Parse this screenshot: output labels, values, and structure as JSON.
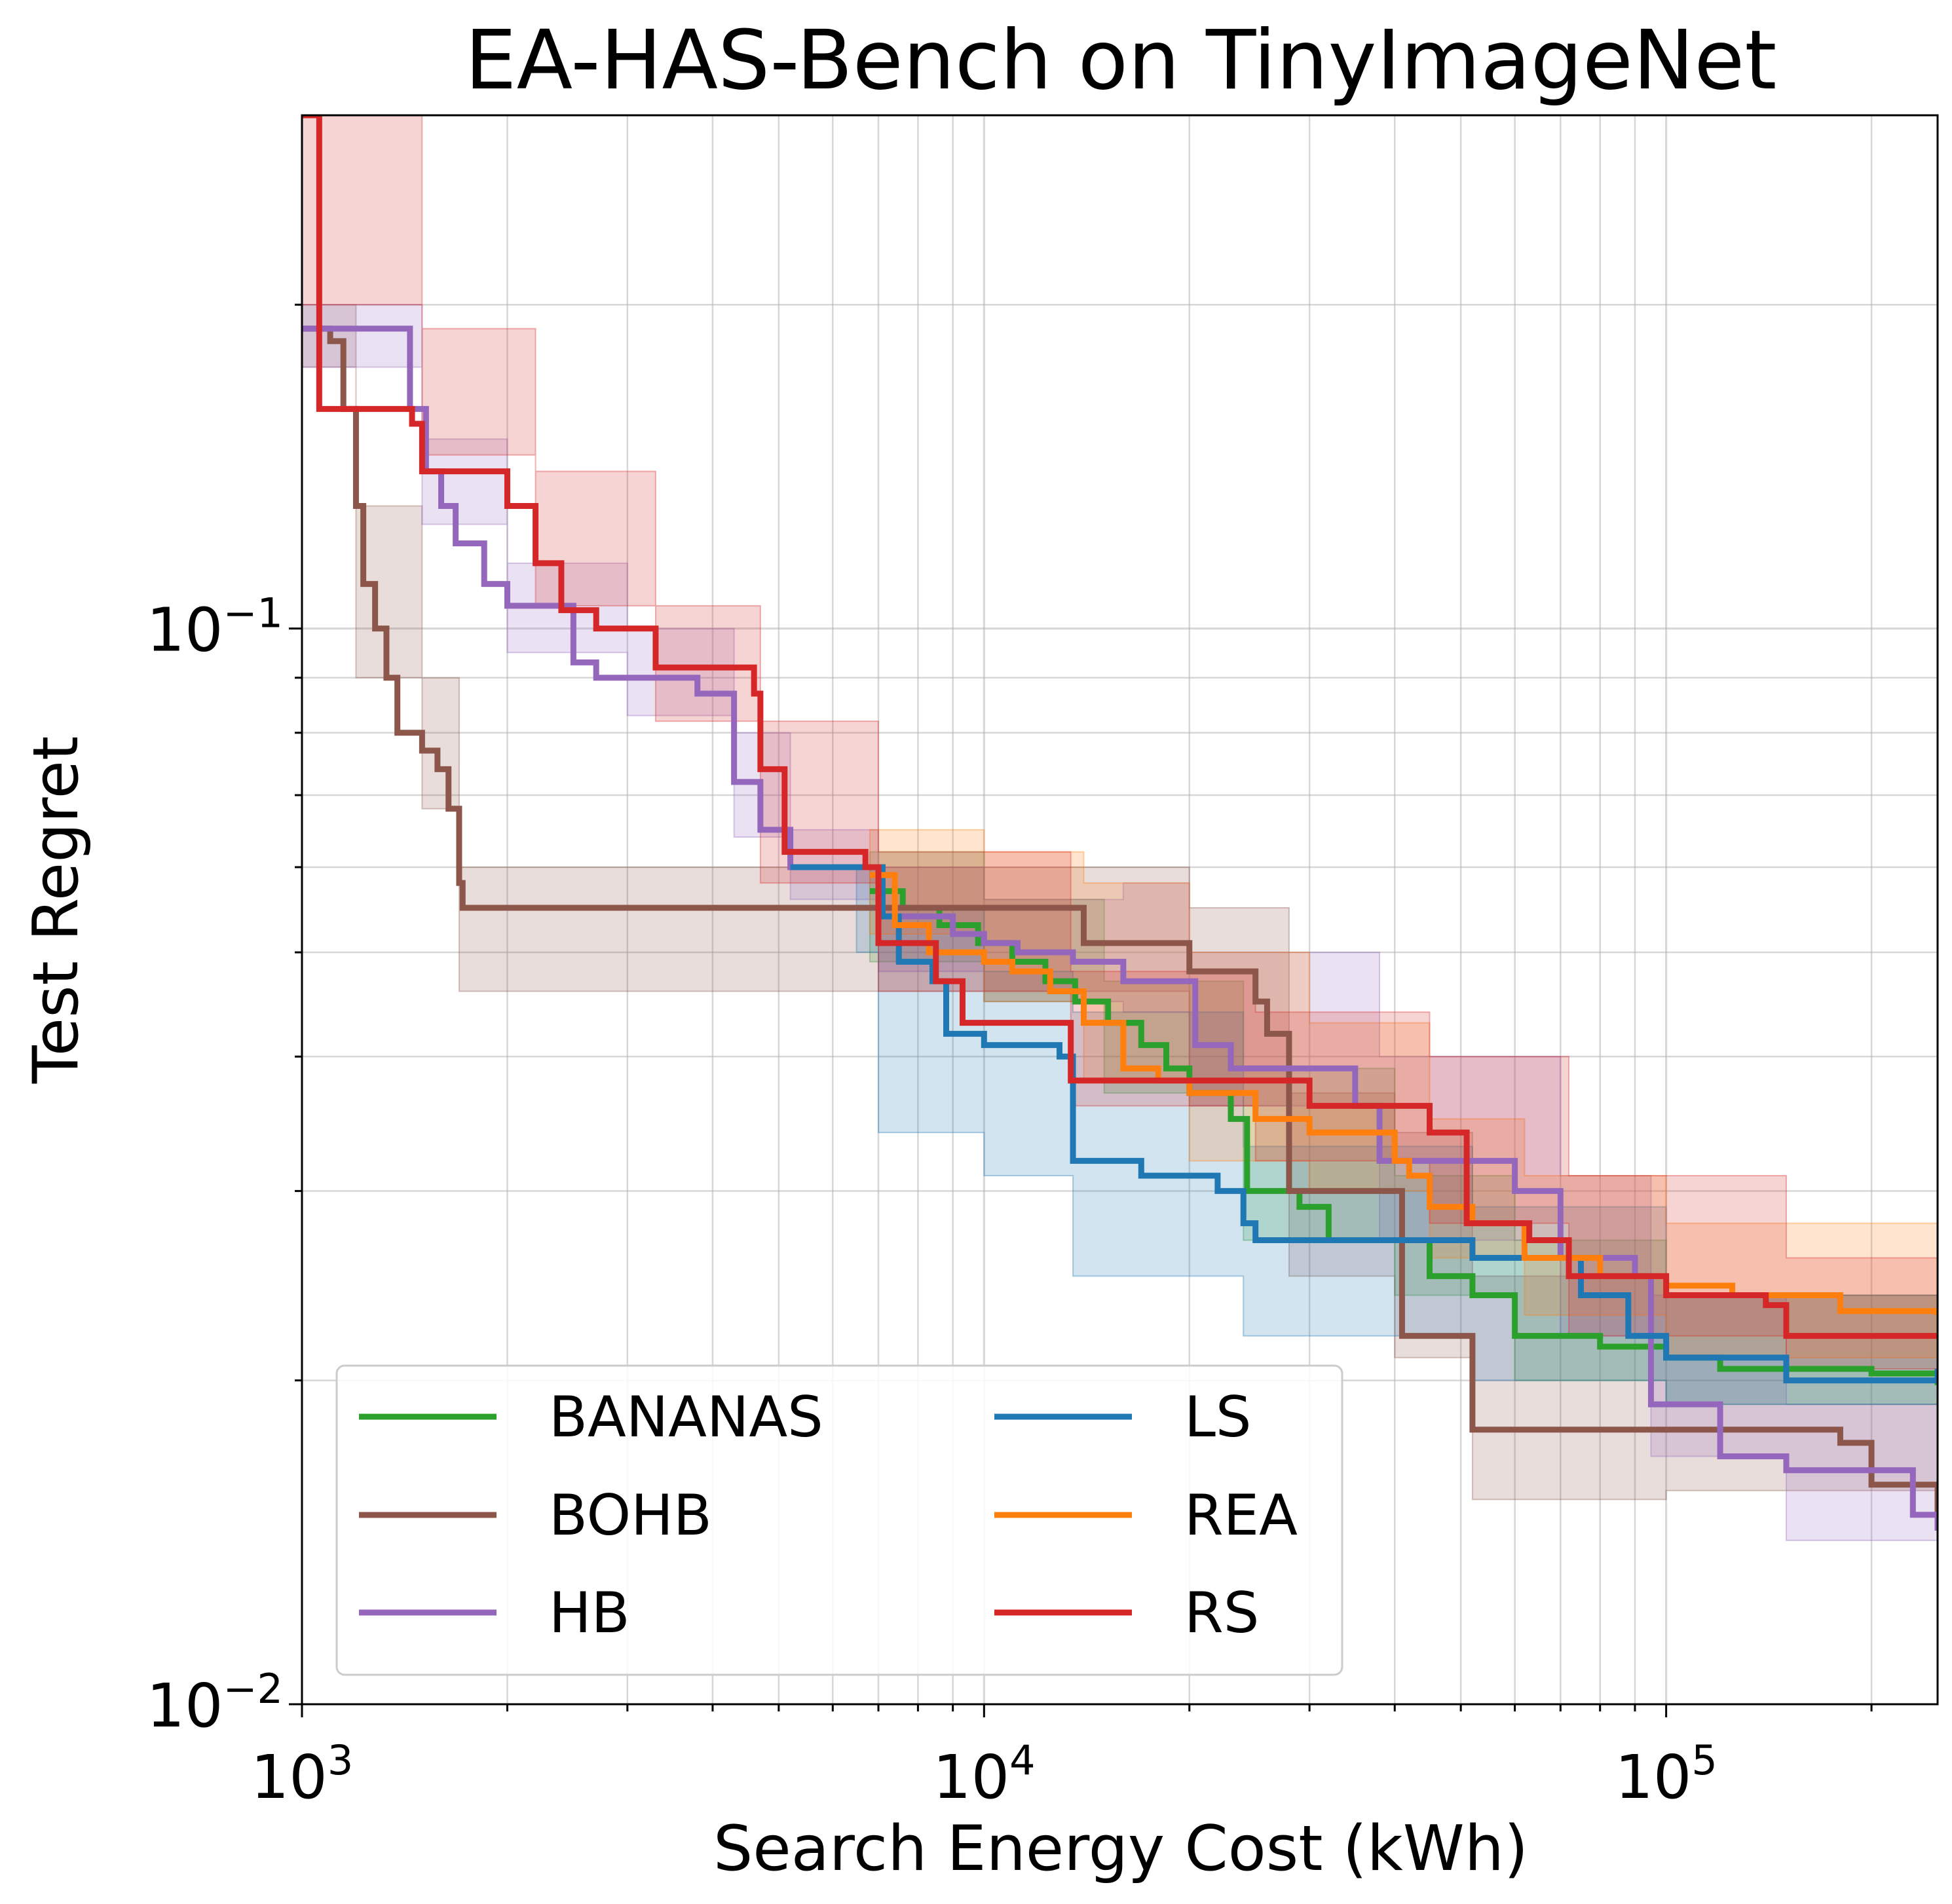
{
  "chart_data": {
    "type": "line",
    "title": "EA-HAS-Bench on TinyImageNet",
    "xlabel": "Search Energy Cost (kWh)",
    "ylabel": "Test Regret",
    "x_scale": "log",
    "y_scale": "log",
    "xlim": [
      1000,
      250000
    ],
    "ylim": [
      0.01,
      0.3
    ],
    "grid": true,
    "grid_minor": true,
    "legend": {
      "placement": "lower-left",
      "columns": 2
    },
    "x_ticks": [
      {
        "value": 1000,
        "base": "10",
        "exp": "3"
      },
      {
        "value": 10000,
        "base": "10",
        "exp": "4"
      },
      {
        "value": 100000,
        "base": "10",
        "exp": "5"
      }
    ],
    "y_ticks": [
      {
        "value": 0.01,
        "base": "10",
        "exp": "−2"
      },
      {
        "value": 0.1,
        "base": "10",
        "exp": "−1"
      }
    ],
    "series": [
      {
        "name": "BANANAS",
        "color": "#2ca02c",
        "points": [
          [
            6800,
            0.057
          ],
          [
            7600,
            0.055
          ],
          [
            8600,
            0.053
          ],
          [
            9800,
            0.051
          ],
          [
            11000,
            0.049
          ],
          [
            12300,
            0.047
          ],
          [
            13600,
            0.045
          ],
          [
            15200,
            0.043
          ],
          [
            17000,
            0.041
          ],
          [
            18500,
            0.039
          ],
          [
            20000,
            0.037
          ],
          [
            23000,
            0.035
          ],
          [
            24300,
            0.03
          ],
          [
            29000,
            0.029
          ],
          [
            32000,
            0.027
          ],
          [
            40000,
            0.027
          ],
          [
            45000,
            0.025
          ],
          [
            52000,
            0.024
          ],
          [
            60000,
            0.022
          ],
          [
            80000,
            0.0215
          ],
          [
            100000,
            0.021
          ],
          [
            120000,
            0.0205
          ],
          [
            200000,
            0.0203
          ],
          [
            250000,
            0.0198
          ]
        ],
        "band": [
          [
            6800,
            0.062,
            0.049
          ],
          [
            10000,
            0.056,
            0.045
          ],
          [
            15000,
            0.047,
            0.037
          ],
          [
            24000,
            0.039,
            0.027
          ],
          [
            40000,
            0.031,
            0.024
          ],
          [
            60000,
            0.027,
            0.02
          ],
          [
            100000,
            0.024,
            0.019
          ],
          [
            250000,
            0.023,
            0.0175
          ]
        ]
      },
      {
        "name": "BOHB",
        "color": "#8c564b",
        "points": [
          [
            1000,
            0.19
          ],
          [
            1100,
            0.185
          ],
          [
            1150,
            0.16
          ],
          [
            1200,
            0.13
          ],
          [
            1230,
            0.11
          ],
          [
            1280,
            0.1
          ],
          [
            1330,
            0.09
          ],
          [
            1380,
            0.08
          ],
          [
            1500,
            0.077
          ],
          [
            1580,
            0.074
          ],
          [
            1640,
            0.068
          ],
          [
            1700,
            0.058
          ],
          [
            1720,
            0.055
          ],
          [
            13000,
            0.055
          ],
          [
            14000,
            0.051
          ],
          [
            20000,
            0.048
          ],
          [
            25000,
            0.045
          ],
          [
            26000,
            0.042
          ],
          [
            28000,
            0.03
          ],
          [
            40000,
            0.03
          ],
          [
            41000,
            0.022
          ],
          [
            52000,
            0.018
          ],
          [
            100000,
            0.018
          ],
          [
            180000,
            0.0175
          ],
          [
            200000,
            0.016
          ],
          [
            250000,
            0.015
          ]
        ],
        "band": [
          [
            1000,
            0.2,
            0.175
          ],
          [
            1200,
            0.13,
            0.09
          ],
          [
            1500,
            0.09,
            0.068
          ],
          [
            1700,
            0.06,
            0.046
          ],
          [
            13000,
            0.06,
            0.046
          ],
          [
            20000,
            0.055,
            0.036
          ],
          [
            28000,
            0.037,
            0.025
          ],
          [
            40000,
            0.034,
            0.021
          ],
          [
            52000,
            0.025,
            0.0155
          ],
          [
            100000,
            0.024,
            0.0158
          ],
          [
            250000,
            0.022,
            0.0128
          ]
        ]
      },
      {
        "name": "HB",
        "color": "#9467bd",
        "points": [
          [
            1000,
            0.19
          ],
          [
            1380,
            0.19
          ],
          [
            1440,
            0.16
          ],
          [
            1520,
            0.14
          ],
          [
            1600,
            0.13
          ],
          [
            1680,
            0.12
          ],
          [
            1850,
            0.11
          ],
          [
            2000,
            0.105
          ],
          [
            2350,
            0.105
          ],
          [
            2500,
            0.093
          ],
          [
            2700,
            0.09
          ],
          [
            3500,
            0.09
          ],
          [
            3800,
            0.087
          ],
          [
            4300,
            0.072
          ],
          [
            4700,
            0.065
          ],
          [
            5200,
            0.06
          ],
          [
            6800,
            0.06
          ],
          [
            7100,
            0.054
          ],
          [
            9000,
            0.052
          ],
          [
            10000,
            0.051
          ],
          [
            11200,
            0.05
          ],
          [
            13500,
            0.049
          ],
          [
            16000,
            0.047
          ],
          [
            20000,
            0.047
          ],
          [
            20400,
            0.041
          ],
          [
            23000,
            0.039
          ],
          [
            35000,
            0.036
          ],
          [
            38000,
            0.032
          ],
          [
            60000,
            0.03
          ],
          [
            70000,
            0.026
          ],
          [
            90000,
            0.025
          ],
          [
            95000,
            0.019
          ],
          [
            120000,
            0.017
          ],
          [
            150000,
            0.0165
          ],
          [
            200000,
            0.0165
          ],
          [
            230000,
            0.015
          ],
          [
            250000,
            0.0145
          ]
        ],
        "band": [
          [
            1000,
            0.2,
            0.175
          ],
          [
            1500,
            0.15,
            0.125
          ],
          [
            2000,
            0.115,
            0.095
          ],
          [
            3000,
            0.1,
            0.083
          ],
          [
            4300,
            0.08,
            0.064
          ],
          [
            5200,
            0.065,
            0.056
          ],
          [
            7000,
            0.06,
            0.048
          ],
          [
            10000,
            0.056,
            0.045
          ],
          [
            16000,
            0.058,
            0.044
          ],
          [
            20000,
            0.05,
            0.036
          ],
          [
            38000,
            0.04,
            0.027
          ],
          [
            70000,
            0.031,
            0.022
          ],
          [
            95000,
            0.024,
            0.017
          ],
          [
            150000,
            0.019,
            0.0142
          ],
          [
            250000,
            0.0175,
            0.0125
          ]
        ]
      },
      {
        "name": "LS",
        "color": "#1f77b4",
        "points": [
          [
            5200,
            0.06
          ],
          [
            6800,
            0.06
          ],
          [
            7100,
            0.054
          ],
          [
            7500,
            0.049
          ],
          [
            8400,
            0.047
          ],
          [
            8800,
            0.042
          ],
          [
            10000,
            0.041
          ],
          [
            12900,
            0.04
          ],
          [
            13500,
            0.032
          ],
          [
            17000,
            0.031
          ],
          [
            22000,
            0.03
          ],
          [
            24000,
            0.028
          ],
          [
            25000,
            0.027
          ],
          [
            40000,
            0.027
          ],
          [
            52000,
            0.026
          ],
          [
            63000,
            0.026
          ],
          [
            75000,
            0.024
          ],
          [
            88000,
            0.022
          ],
          [
            100000,
            0.021
          ],
          [
            150000,
            0.02
          ],
          [
            250000,
            0.0205
          ]
        ],
        "band": [
          [
            6500,
            0.06,
            0.05
          ],
          [
            7000,
            0.055,
            0.034
          ],
          [
            10000,
            0.048,
            0.031
          ],
          [
            13500,
            0.044,
            0.025
          ],
          [
            24000,
            0.033,
            0.022
          ],
          [
            52000,
            0.029,
            0.02
          ],
          [
            100000,
            0.024,
            0.019
          ],
          [
            250000,
            0.023,
            0.019
          ]
        ]
      },
      {
        "name": "REA",
        "color": "#ff7f0e",
        "points": [
          [
            6800,
            0.059
          ],
          [
            7400,
            0.053
          ],
          [
            8300,
            0.05
          ],
          [
            10000,
            0.049
          ],
          [
            11000,
            0.048
          ],
          [
            12500,
            0.046
          ],
          [
            14000,
            0.043
          ],
          [
            16000,
            0.039
          ],
          [
            18000,
            0.038
          ],
          [
            20000,
            0.037
          ],
          [
            25000,
            0.035
          ],
          [
            30000,
            0.034
          ],
          [
            40000,
            0.032
          ],
          [
            42000,
            0.031
          ],
          [
            45000,
            0.029
          ],
          [
            52000,
            0.028
          ],
          [
            62000,
            0.026
          ],
          [
            80000,
            0.025
          ],
          [
            100000,
            0.0245
          ],
          [
            125000,
            0.024
          ],
          [
            180000,
            0.0232
          ],
          [
            250000,
            0.023
          ]
        ],
        "band": [
          [
            6800,
            0.065,
            0.052
          ],
          [
            10000,
            0.062,
            0.045
          ],
          [
            14000,
            0.058,
            0.038
          ],
          [
            20000,
            0.05,
            0.032
          ],
          [
            30000,
            0.043,
            0.03
          ],
          [
            45000,
            0.035,
            0.026
          ],
          [
            62000,
            0.031,
            0.023
          ],
          [
            100000,
            0.028,
            0.021
          ],
          [
            250000,
            0.027,
            0.02
          ]
        ]
      },
      {
        "name": "RS",
        "color": "#d62728",
        "points": [
          [
            1000,
            0.3
          ],
          [
            1060,
            0.16
          ],
          [
            1450,
            0.155
          ],
          [
            1500,
            0.14
          ],
          [
            2000,
            0.13
          ],
          [
            2200,
            0.115
          ],
          [
            2400,
            0.104
          ],
          [
            2700,
            0.1
          ],
          [
            3300,
            0.092
          ],
          [
            4600,
            0.087
          ],
          [
            4700,
            0.074
          ],
          [
            5100,
            0.062
          ],
          [
            6700,
            0.06
          ],
          [
            7000,
            0.051
          ],
          [
            8500,
            0.047
          ],
          [
            9300,
            0.043
          ],
          [
            12600,
            0.043
          ],
          [
            13400,
            0.038
          ],
          [
            25000,
            0.038
          ],
          [
            30000,
            0.036
          ],
          [
            45000,
            0.034
          ],
          [
            51000,
            0.028
          ],
          [
            63000,
            0.027
          ],
          [
            72000,
            0.025
          ],
          [
            100000,
            0.024
          ],
          [
            140000,
            0.0235
          ],
          [
            150000,
            0.022
          ],
          [
            250000,
            0.022
          ]
        ],
        "band": [
          [
            1000,
            0.3,
            0.2
          ],
          [
            1500,
            0.19,
            0.145
          ],
          [
            2200,
            0.14,
            0.105
          ],
          [
            3300,
            0.105,
            0.082
          ],
          [
            4700,
            0.082,
            0.058
          ],
          [
            7000,
            0.062,
            0.046
          ],
          [
            13400,
            0.048,
            0.036
          ],
          [
            25000,
            0.044,
            0.032
          ],
          [
            45000,
            0.04,
            0.028
          ],
          [
            72000,
            0.031,
            0.022
          ],
          [
            150000,
            0.026,
            0.0205
          ],
          [
            250000,
            0.025,
            0.0205
          ]
        ]
      }
    ]
  }
}
